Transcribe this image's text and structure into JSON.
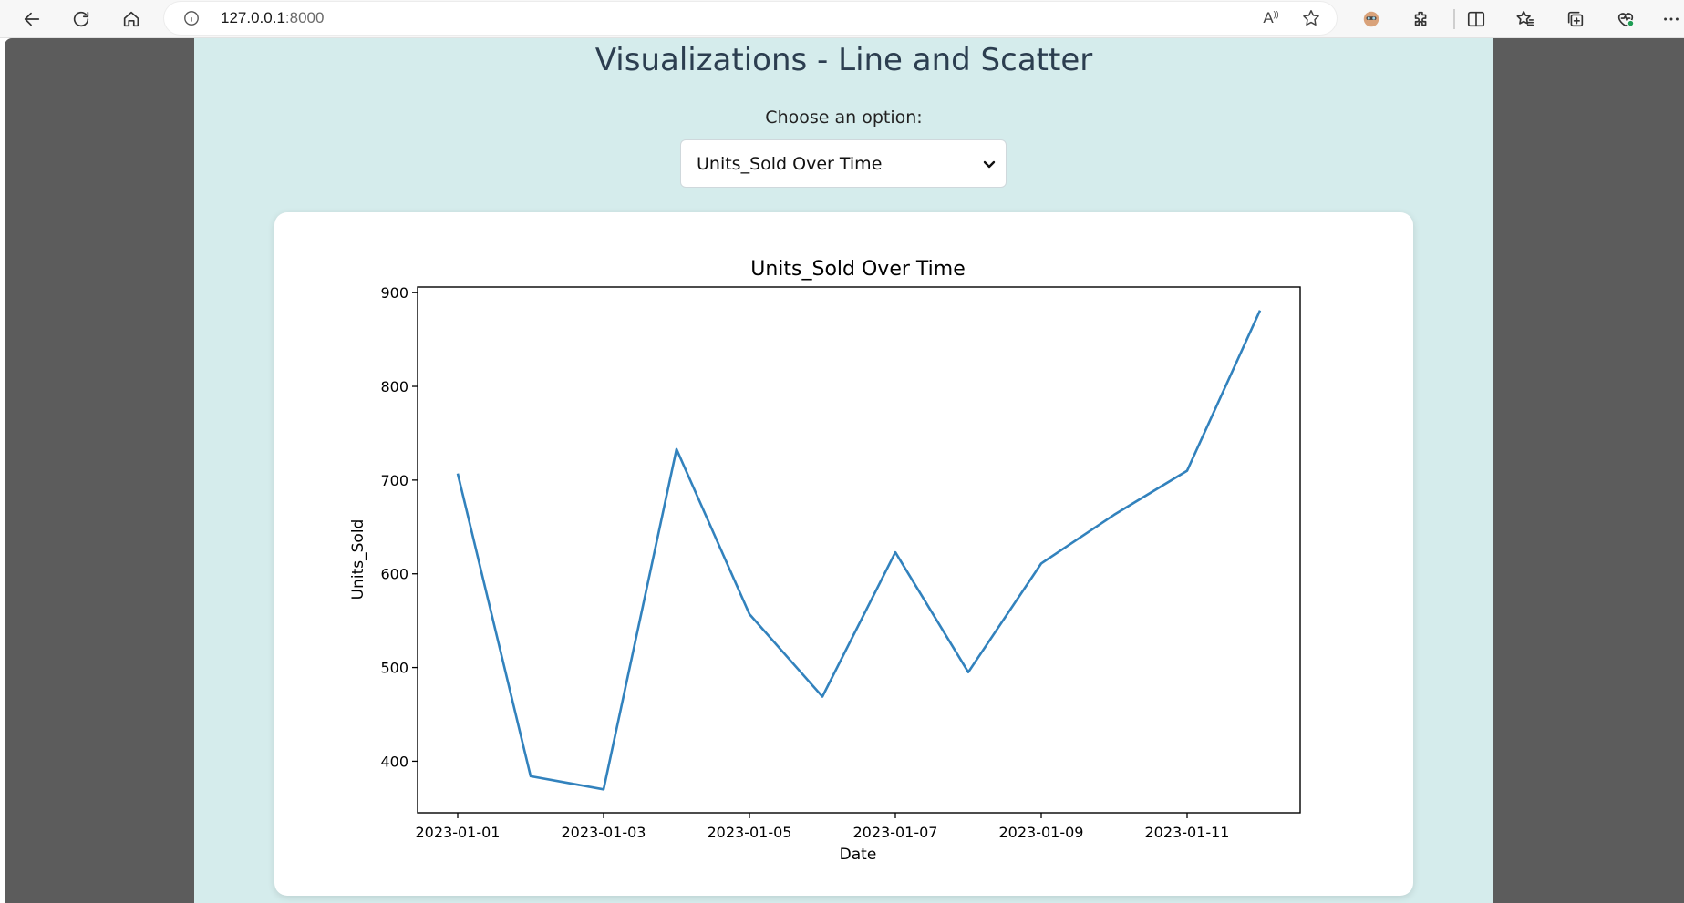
{
  "browser": {
    "url_host": "127.0.0.1",
    "url_port": ":8000",
    "read_aloud_glyph": "A",
    "read_aloud_sup": "))"
  },
  "page": {
    "title": "Visualizations - Line and Scatter",
    "choose_label": "Choose an option:",
    "selected_option": "Units_Sold Over Time"
  },
  "colors": {
    "page_background": "#d5ecec",
    "line": "#3282bd"
  },
  "chart_data": {
    "type": "line",
    "title": "Units_Sold Over Time",
    "xlabel": "Date",
    "ylabel": "Units_Sold",
    "x": [
      "2023-01-01",
      "2023-01-02",
      "2023-01-03",
      "2023-01-04",
      "2023-01-05",
      "2023-01-06",
      "2023-01-07",
      "2023-01-08",
      "2023-01-09",
      "2023-01-10",
      "2023-01-11",
      "2023-01-12"
    ],
    "series": [
      {
        "values": [
          707,
          384,
          370,
          733,
          557,
          469,
          623,
          495,
          611,
          663,
          710,
          881
        ]
      }
    ],
    "x_ticks": [
      "2023-01-01",
      "2023-01-03",
      "2023-01-05",
      "2023-01-07",
      "2023-01-09",
      "2023-01-11"
    ],
    "y_ticks": [
      400,
      500,
      600,
      700,
      800,
      900
    ],
    "ylim": [
      345,
      906
    ],
    "grid": false,
    "legend": "none"
  }
}
